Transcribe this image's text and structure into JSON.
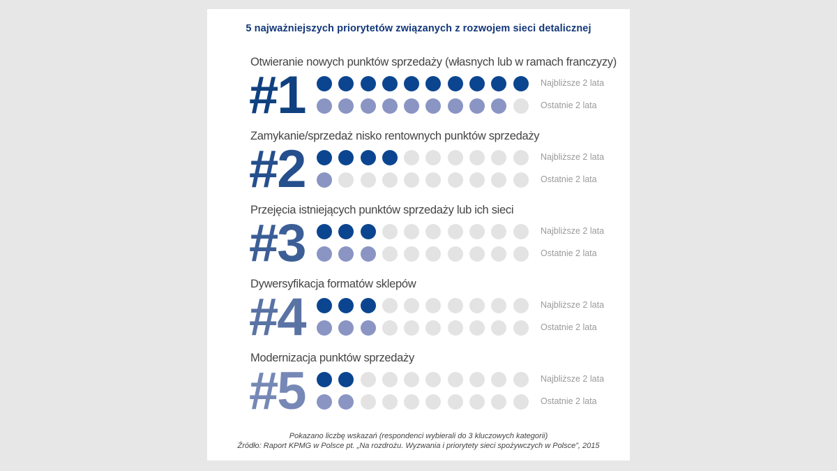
{
  "title": "5 najważniejszych priorytetów związanych z rozwojem sieci detalicznej",
  "footnote_line1": "Pokazano liczbę wskazań (respondenci wybierali do 3 kluczowych kategorii)",
  "footnote_line2": "Źródło: Raport KPMG w Polsce pt. „Na rozdrożu. Wyzwania i priorytety sieci spożywczych w Polsce”, 2015",
  "chart_data": {
    "type": "table",
    "title": "5 najważniejszych priorytetów związanych z rozwojem sieci detalicznej",
    "max_dots": 10,
    "series_labels": [
      "Najbliższe 2 lata",
      "Ostatnie 2 lata"
    ],
    "colors": {
      "next_filled": "#0b4590",
      "past_filled": "#8a95c4",
      "empty": "#e3e3e4"
    },
    "items": [
      {
        "rank": "#1",
        "label": "Otwieranie nowych punktów sprzedaży (własnych lub w ramach franczyzy)",
        "next": 10,
        "past": 9,
        "rank_color": "#10417f"
      },
      {
        "rank": "#2",
        "label": "Zamykanie/sprzedaż nisko rentownych punktów sprzedaży",
        "next": 4,
        "past": 1,
        "rank_color": "#254f8d"
      },
      {
        "rank": "#3",
        "label": "Przejęcia istniejących punktów sprzedaży lub ich sieci",
        "next": 3,
        "past": 3,
        "rank_color": "#3c5e97"
      },
      {
        "rank": "#4",
        "label": "Dywersyfikacja formatów sklepów",
        "next": 3,
        "past": 3,
        "rank_color": "#5a73a5"
      },
      {
        "rank": "#5",
        "label": "Modernizacja punktów sprzedaży",
        "next": 2,
        "past": 2,
        "rank_color": "#7688b5"
      }
    ]
  }
}
